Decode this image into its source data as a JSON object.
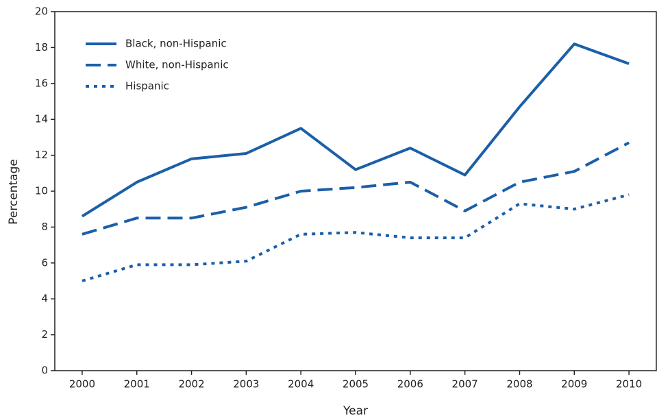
{
  "chart_data": {
    "type": "line",
    "x_label": "Year",
    "y_label": "Percentage",
    "categories": [
      "2000",
      "2001",
      "2002",
      "2003",
      "2004",
      "2005",
      "2006",
      "2007",
      "2008",
      "2009",
      "2010"
    ],
    "series": [
      {
        "name": "Black, non-Hispanic",
        "color": "#1b5fa8",
        "line_style": "solid",
        "values": [
          8.6,
          10.5,
          11.8,
          12.1,
          13.5,
          11.2,
          12.4,
          10.9,
          14.7,
          18.2,
          17.1
        ]
      },
      {
        "name": "White, non-Hispanic",
        "color": "#1b5fa8",
        "line_style": "dashed",
        "values": [
          7.6,
          8.5,
          8.5,
          9.1,
          10.0,
          10.2,
          10.5,
          8.9,
          10.5,
          11.1,
          12.7
        ]
      },
      {
        "name": "Hispanic",
        "color": "#1b5fa8",
        "line_style": "dotted",
        "values": [
          5.0,
          5.9,
          5.9,
          6.1,
          7.6,
          7.7,
          7.4,
          7.4,
          9.3,
          9.0,
          9.8
        ]
      }
    ],
    "ylim": [
      0,
      20
    ],
    "yticks": [
      0,
      2,
      4,
      6,
      8,
      10,
      12,
      14,
      16,
      18,
      20
    ],
    "legend": "upper left"
  }
}
